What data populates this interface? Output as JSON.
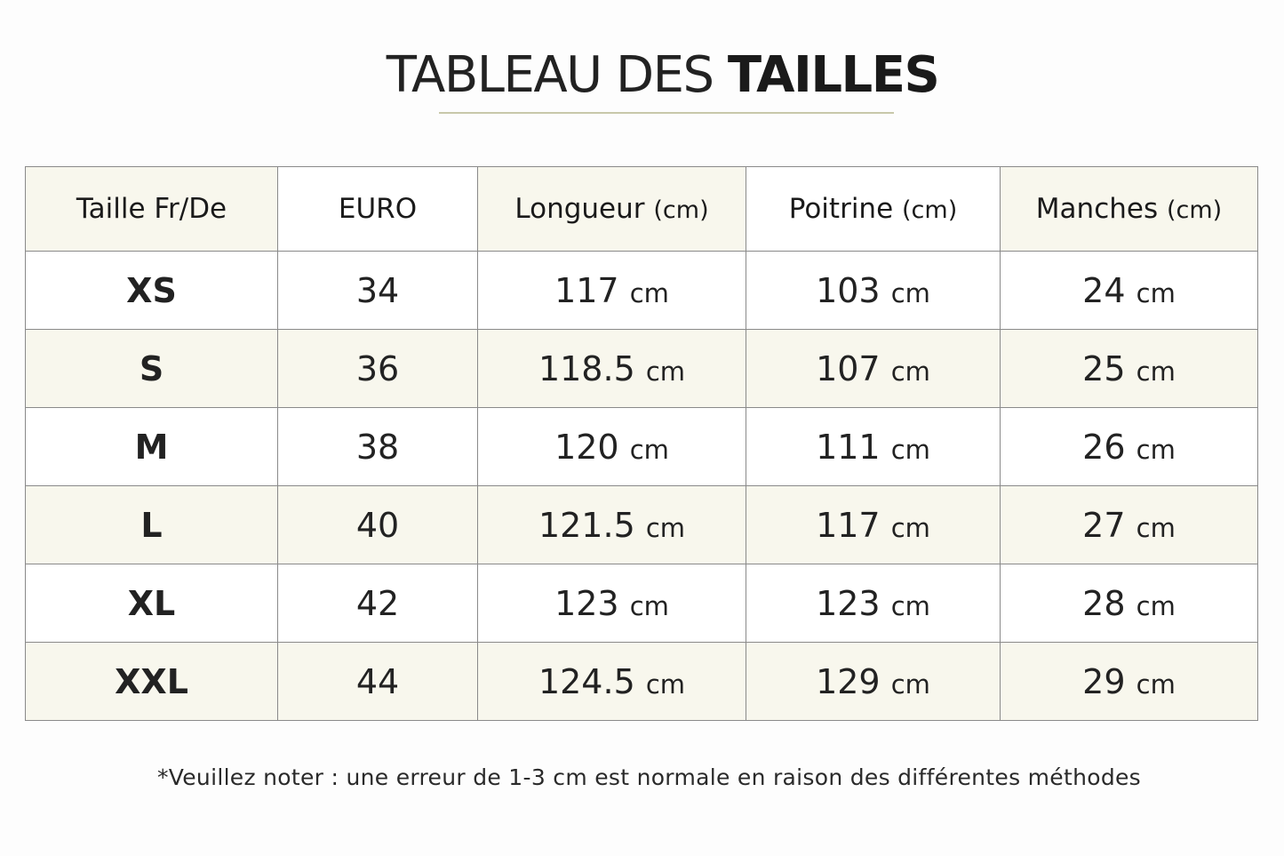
{
  "title": {
    "light": "TABLEAU DES",
    "bold": "TAILLES"
  },
  "table": {
    "headers": [
      {
        "main": "Taille Fr/De",
        "unit": ""
      },
      {
        "main": "EURO",
        "unit": ""
      },
      {
        "main": "Longueur",
        "unit": "(cm)"
      },
      {
        "main": "Poitrine",
        "unit": "(cm)"
      },
      {
        "main": "Manches",
        "unit": "(cm)"
      }
    ],
    "rows": [
      {
        "size": "XS",
        "euro": "34",
        "longueur": "117",
        "poitrine": "103",
        "manches": "24",
        "unit": "cm"
      },
      {
        "size": "S",
        "euro": "36",
        "longueur": "118.5",
        "poitrine": "107",
        "manches": "25",
        "unit": "cm"
      },
      {
        "size": "M",
        "euro": "38",
        "longueur": "120",
        "poitrine": "111",
        "manches": "26",
        "unit": "cm"
      },
      {
        "size": "L",
        "euro": "40",
        "longueur": "121.5",
        "poitrine": "117",
        "manches": "27",
        "unit": "cm"
      },
      {
        "size": "XL",
        "euro": "42",
        "longueur": "123",
        "poitrine": "123",
        "manches": "28",
        "unit": "cm"
      },
      {
        "size": "XXL",
        "euro": "44",
        "longueur": "124.5",
        "poitrine": "129",
        "manches": "29",
        "unit": "cm"
      }
    ]
  },
  "footnote": "*Veuillez noter : une erreur de 1-3 cm est normale en raison des différentes méthodes",
  "colors": {
    "shade": "#f8f7ed",
    "border": "#8a8a8a",
    "rule": "#c8c8aa"
  }
}
